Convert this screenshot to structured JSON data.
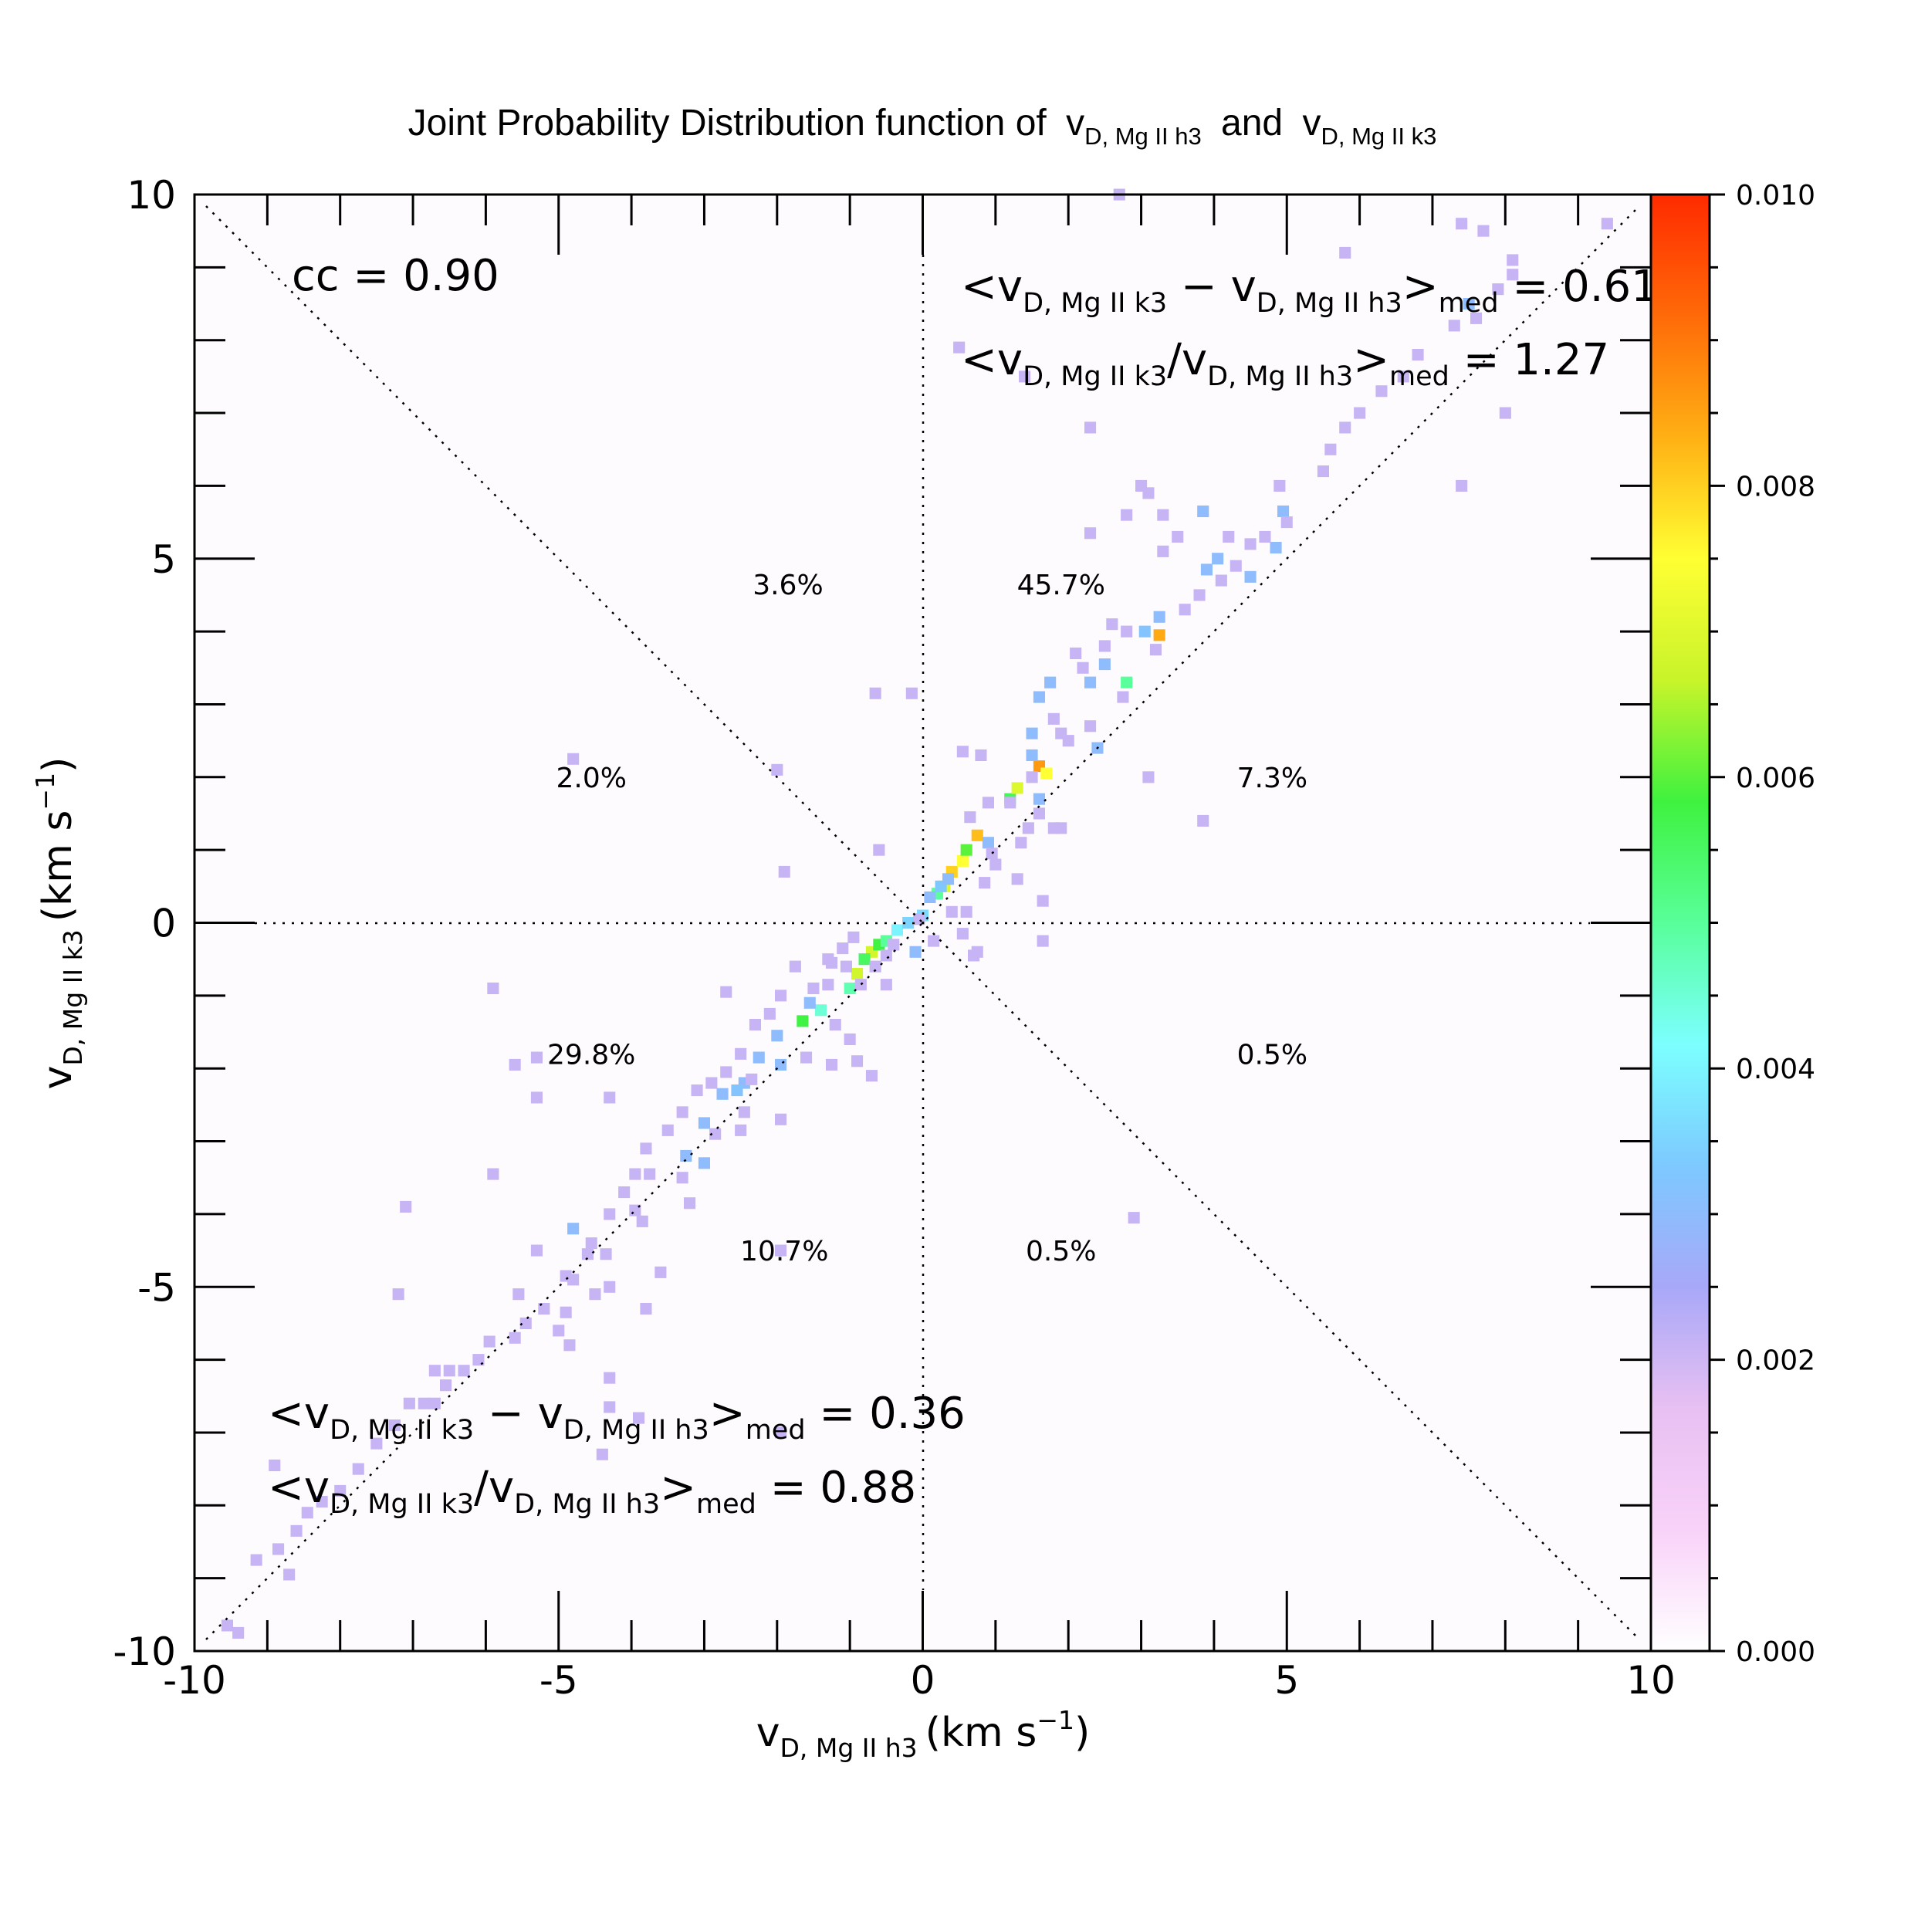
{
  "chart_data": {
    "type": "heatmap",
    "title": "Joint Probability Distribution function of",
    "title_var1": {
      "base": "v",
      "sub": "D, Mg II h3"
    },
    "title_and": "and",
    "title_var2": {
      "base": "v",
      "sub": "D, Mg II k3"
    },
    "xlabel": {
      "base": "v",
      "sub": "D, Mg II h3",
      "unit_pre": "(km s",
      "unit_sup": "−1",
      "unit_post": ")"
    },
    "ylabel": {
      "base": "v",
      "sub": "D, Mg II k3",
      "unit_pre": "(km s",
      "unit_sup": "−1",
      "unit_post": ")"
    },
    "xlim": [
      -10,
      10
    ],
    "ylim": [
      -10,
      10
    ],
    "xticks": [
      "-10",
      "-5",
      "0",
      "5",
      "10"
    ],
    "yticks": [
      "-10",
      "-5",
      "0",
      "5",
      "10"
    ],
    "colorbar": {
      "min": 0.0,
      "max": 0.01,
      "ticks": [
        "0.000",
        "0.002",
        "0.004",
        "0.006",
        "0.008",
        "0.010"
      ],
      "colors": [
        "#ffffff",
        "#f9d2f9",
        "#e8c0f2",
        "#a8a8f8",
        "#7dc9ff",
        "#7cffff",
        "#58ff9a",
        "#3ff23f",
        "#c8f42a",
        "#ffff33",
        "#ffb014",
        "#ff6a08",
        "#ff2a00"
      ]
    },
    "cc_label": "cc = 0.90",
    "upper_stats": {
      "line1": {
        "lhs": "<v",
        "s1": "D, Mg II k3",
        "minus": " − v",
        "s2": "D, Mg II h3",
        "close": ">",
        "med": "med",
        "eq": " = 0.61"
      },
      "line2": {
        "lhs": "<v",
        "s1": "D, Mg II k3",
        "slash": "/v",
        "s2": "D, Mg II h3",
        "close": ">",
        "med": "med",
        "eq": " = 1.27"
      }
    },
    "lower_stats": {
      "line1": {
        "lhs": "<v",
        "s1": "D, Mg II k3",
        "minus": " − v",
        "s2": "D, Mg II h3",
        "close": ">",
        "med": "med",
        "eq": " = 0.36"
      },
      "line2": {
        "lhs": "<v",
        "s1": "D, Mg II k3",
        "slash": "/v",
        "s2": "D, Mg II h3",
        "close": ">",
        "med": "med",
        "eq": " = 0.88"
      }
    },
    "octant_percentages": [
      {
        "label": "3.6%",
        "x": -1.85,
        "y": 4.65
      },
      {
        "label": "45.7%",
        "x": 1.9,
        "y": 4.65
      },
      {
        "label": "2.0%",
        "x": -4.55,
        "y": 2.0
      },
      {
        "label": "7.3%",
        "x": 4.8,
        "y": 2.0
      },
      {
        "label": "29.8%",
        "x": -4.55,
        "y": -1.8
      },
      {
        "label": "0.5%",
        "x": 4.8,
        "y": -1.8
      },
      {
        "label": "10.7%",
        "x": -1.9,
        "y": -4.5
      },
      {
        "label": "0.5%",
        "x": 1.9,
        "y": -4.5
      }
    ],
    "bin_size": 0.16,
    "cells": [
      [
        -0.7,
        -0.4,
        0.0068
      ],
      [
        -0.6,
        -0.3,
        0.0058
      ],
      [
        -0.9,
        -0.7,
        0.0068
      ],
      [
        -0.8,
        -0.5,
        0.0055
      ],
      [
        -0.5,
        -0.25,
        0.005
      ],
      [
        -0.35,
        -0.1,
        0.004
      ],
      [
        -0.2,
        0.0,
        0.0035
      ],
      [
        0.0,
        0.1,
        0.0036
      ],
      [
        0.2,
        0.4,
        0.005
      ],
      [
        0.3,
        0.5,
        0.007
      ],
      [
        0.4,
        0.7,
        0.008
      ],
      [
        0.1,
        0.35,
        0.003
      ],
      [
        0.25,
        0.5,
        0.0033
      ],
      [
        0.55,
        0.85,
        0.0075
      ],
      [
        0.75,
        1.2,
        0.0082
      ],
      [
        0.6,
        1.0,
        0.006
      ],
      [
        0.9,
        1.1,
        0.003
      ],
      [
        1.2,
        1.7,
        0.0056
      ],
      [
        1.3,
        1.85,
        0.007
      ],
      [
        1.6,
        2.15,
        0.0086
      ],
      [
        1.7,
        2.05,
        0.0075
      ],
      [
        1.5,
        2.3,
        0.003
      ],
      [
        1.5,
        2.6,
        0.003
      ],
      [
        1.6,
        3.1,
        0.003
      ],
      [
        1.75,
        3.3,
        0.003
      ],
      [
        2.3,
        3.3,
        0.003
      ],
      [
        2.5,
        3.55,
        0.003
      ],
      [
        2.8,
        3.3,
        0.005
      ],
      [
        3.05,
        4.0,
        0.0032
      ],
      [
        3.25,
        3.95,
        0.0084
      ],
      [
        3.25,
        4.2,
        0.003
      ],
      [
        3.9,
        4.85,
        0.003
      ],
      [
        4.05,
        5.0,
        0.003
      ],
      [
        4.5,
        4.75,
        0.003
      ],
      [
        4.85,
        5.15,
        0.003
      ],
      [
        4.95,
        5.65,
        0.003
      ],
      [
        3.85,
        5.65,
        0.003
      ],
      [
        1.6,
        1.7,
        0.003
      ],
      [
        -1.0,
        -0.9,
        0.0048
      ],
      [
        -1.4,
        -1.2,
        0.0045
      ],
      [
        -1.65,
        -1.35,
        0.0058
      ],
      [
        -1.55,
        -1.1,
        0.003
      ],
      [
        -2.0,
        -1.55,
        0.003
      ],
      [
        -2.25,
        -1.85,
        0.003
      ],
      [
        -2.45,
        -2.2,
        0.003
      ],
      [
        -2.55,
        -2.3,
        0.0032
      ],
      [
        -1.95,
        -1.95,
        0.003
      ],
      [
        -2.75,
        -2.35,
        0.003
      ],
      [
        -3.0,
        -2.75,
        0.003
      ],
      [
        -3.25,
        -3.2,
        0.003
      ],
      [
        -3.0,
        -3.3,
        0.003
      ],
      [
        -4.8,
        -4.2,
        0.003
      ],
      [
        -0.1,
        -0.4,
        0.003
      ],
      [
        0.35,
        0.6,
        0.003
      ],
      [
        2.4,
        2.4,
        0.003
      ],
      [
        7.5,
        8.5,
        0.003
      ],
      [
        -0.85,
        -0.85,
        0.0021
      ],
      [
        -1.05,
        -0.6,
        0.0021
      ],
      [
        -1.25,
        -0.55,
        0.0021
      ],
      [
        -1.3,
        -0.85,
        0.0021
      ],
      [
        -1.5,
        -0.9,
        0.0021
      ],
      [
        -0.65,
        -0.6,
        0.0021
      ],
      [
        -0.5,
        -0.85,
        0.0021
      ],
      [
        0.6,
        0.15,
        0.0021
      ],
      [
        0.85,
        0.55,
        0.0021
      ],
      [
        1.0,
        0.8,
        0.0021
      ],
      [
        1.35,
        1.1,
        0.0021
      ],
      [
        1.45,
        1.3,
        0.0021
      ],
      [
        1.6,
        1.5,
        0.0021
      ],
      [
        1.9,
        1.3,
        0.0021
      ],
      [
        0.65,
        1.45,
        0.0021
      ],
      [
        0.9,
        1.65,
        0.0021
      ],
      [
        0.55,
        2.35,
        0.0021
      ],
      [
        0.8,
        2.3,
        0.0021
      ],
      [
        1.5,
        2.0,
        0.0021
      ],
      [
        1.8,
        2.8,
        0.0021
      ],
      [
        1.9,
        2.6,
        0.0021
      ],
      [
        2.0,
        2.5,
        0.0021
      ],
      [
        2.3,
        2.7,
        0.0021
      ],
      [
        2.2,
        3.5,
        0.0021
      ],
      [
        2.1,
        3.7,
        0.0021
      ],
      [
        2.5,
        3.8,
        0.0021
      ],
      [
        2.6,
        4.1,
        0.0021
      ],
      [
        2.8,
        4.0,
        0.0021
      ],
      [
        2.75,
        3.1,
        0.0021
      ],
      [
        3.2,
        3.75,
        0.0021
      ],
      [
        3.6,
        4.3,
        0.0021
      ],
      [
        3.8,
        4.5,
        0.0021
      ],
      [
        4.1,
        4.7,
        0.0021
      ],
      [
        4.3,
        4.9,
        0.0021
      ],
      [
        4.5,
        5.2,
        0.0021
      ],
      [
        2.8,
        5.6,
        0.0021
      ],
      [
        3.3,
        5.6,
        0.0021
      ],
      [
        3.5,
        5.3,
        0.0021
      ],
      [
        4.2,
        5.3,
        0.0021
      ],
      [
        4.7,
        5.3,
        0.0021
      ],
      [
        4.9,
        6.0,
        0.0021
      ],
      [
        5.0,
        5.5,
        0.0021
      ],
      [
        5.5,
        6.2,
        0.0021
      ],
      [
        5.6,
        6.5,
        0.0021
      ],
      [
        5.8,
        6.8,
        0.0021
      ],
      [
        6.0,
        7.0,
        0.0021
      ],
      [
        6.3,
        7.3,
        0.0021
      ],
      [
        6.6,
        7.5,
        0.0021
      ],
      [
        6.8,
        7.8,
        0.0021
      ],
      [
        7.3,
        8.2,
        0.0021
      ],
      [
        7.6,
        8.3,
        0.0021
      ],
      [
        7.9,
        8.7,
        0.0021
      ],
      [
        8.1,
        8.9,
        0.0021
      ],
      [
        7.7,
        9.5,
        0.0021
      ],
      [
        9.4,
        9.6,
        0.0021
      ],
      [
        5.8,
        9.2,
        0.0021
      ],
      [
        7.4,
        9.6,
        0.0021
      ],
      [
        7.4,
        6.0,
        0.0021
      ],
      [
        8.0,
        7.0,
        0.0021
      ],
      [
        8.1,
        9.1,
        0.0021
      ],
      [
        2.7,
        10.0,
        0.0021
      ],
      [
        3.3,
        5.1,
        0.0021
      ],
      [
        3.0,
        6.0,
        0.0021
      ],
      [
        0.5,
        7.9,
        0.0021
      ],
      [
        2.3,
        6.8,
        0.0021
      ],
      [
        1.4,
        7.5,
        0.0021
      ],
      [
        -0.15,
        3.15,
        0.0021
      ],
      [
        -0.65,
        3.15,
        0.0021
      ],
      [
        -2.0,
        2.1,
        0.0021
      ],
      [
        -1.9,
        0.7,
        0.0021
      ],
      [
        -4.8,
        2.25,
        0.0021
      ],
      [
        3.1,
        2.0,
        0.0021
      ],
      [
        3.85,
        1.4,
        0.0021
      ],
      [
        1.8,
        1.3,
        0.0021
      ],
      [
        1.3,
        0.6,
        0.0021
      ],
      [
        1.65,
        0.3,
        0.0021
      ],
      [
        1.65,
        -0.25,
        0.0021
      ],
      [
        0.4,
        0.15,
        0.0021
      ],
      [
        0.7,
        -0.45,
        0.0021
      ],
      [
        0.95,
        0.95,
        0.0021
      ],
      [
        0.55,
        -0.15,
        0.0021
      ],
      [
        0.15,
        -0.25,
        0.0021
      ],
      [
        -0.05,
        0.05,
        0.0021
      ],
      [
        -0.4,
        -0.3,
        0.0021
      ],
      [
        -0.95,
        -0.2,
        0.0021
      ],
      [
        -1.3,
        -0.5,
        0.0021
      ],
      [
        -1.75,
        -0.6,
        0.0021
      ],
      [
        -1.95,
        -1.0,
        0.0021
      ],
      [
        -2.1,
        -1.25,
        0.0021
      ],
      [
        -2.3,
        -1.4,
        0.0021
      ],
      [
        -2.5,
        -1.8,
        0.0021
      ],
      [
        -2.7,
        -2.05,
        0.0021
      ],
      [
        -2.9,
        -2.2,
        0.0021
      ],
      [
        -3.1,
        -2.3,
        0.0021
      ],
      [
        -3.3,
        -2.6,
        0.0021
      ],
      [
        -3.5,
        -2.85,
        0.0021
      ],
      [
        -3.8,
        -3.1,
        0.0021
      ],
      [
        -3.75,
        -3.45,
        0.0021
      ],
      [
        -3.95,
        -3.45,
        0.0021
      ],
      [
        -4.1,
        -3.7,
        0.0021
      ],
      [
        -4.3,
        -4.0,
        0.0021
      ],
      [
        -4.55,
        -4.4,
        0.0021
      ],
      [
        -4.35,
        -4.55,
        0.0021
      ],
      [
        -4.9,
        -4.85,
        0.0021
      ],
      [
        -5.2,
        -5.3,
        0.0021
      ],
      [
        -5.45,
        -5.5,
        0.0021
      ],
      [
        -5.6,
        -5.7,
        0.0021
      ],
      [
        -5.95,
        -5.75,
        0.0021
      ],
      [
        -6.1,
        -6.0,
        0.0021
      ],
      [
        -6.3,
        -6.15,
        0.0021
      ],
      [
        -6.5,
        -6.15,
        0.0021
      ],
      [
        -6.7,
        -6.15,
        0.0021
      ],
      [
        -6.55,
        -6.35,
        0.0021
      ],
      [
        -6.7,
        -6.6,
        0.0021
      ],
      [
        -6.85,
        -6.6,
        0.0021
      ],
      [
        -7.05,
        -6.6,
        0.0021
      ],
      [
        -7.25,
        -6.9,
        0.0021
      ],
      [
        -7.5,
        -7.15,
        0.0021
      ],
      [
        -7.75,
        -7.5,
        0.0021
      ],
      [
        -8.0,
        -7.8,
        0.0021
      ],
      [
        -8.25,
        -7.95,
        0.0021
      ],
      [
        -8.45,
        -8.1,
        0.0021
      ],
      [
        -8.6,
        -8.35,
        0.0021
      ],
      [
        -8.85,
        -8.6,
        0.0021
      ],
      [
        -9.15,
        -8.75,
        0.0021
      ],
      [
        -8.9,
        -7.45,
        0.0021
      ],
      [
        -8.7,
        -8.95,
        0.0021
      ],
      [
        -9.55,
        -9.65,
        0.0021
      ],
      [
        -9.4,
        -9.75,
        0.0021
      ],
      [
        -5.9,
        -0.9,
        0.0021
      ],
      [
        -5.6,
        -1.95,
        0.0021
      ],
      [
        -5.3,
        -2.4,
        0.0021
      ],
      [
        -4.3,
        -2.4,
        0.0021
      ],
      [
        -5.9,
        -3.45,
        0.0021
      ],
      [
        -5.3,
        -4.5,
        0.0021
      ],
      [
        -4.6,
        -4.55,
        0.0021
      ],
      [
        -4.8,
        -4.9,
        0.0021
      ],
      [
        -4.3,
        -5.0,
        0.0021
      ],
      [
        -4.5,
        -5.1,
        0.0021
      ],
      [
        -4.9,
        -5.35,
        0.0021
      ],
      [
        -4.85,
        -5.8,
        0.0021
      ],
      [
        -5.55,
        -5.1,
        0.0021
      ],
      [
        -5.0,
        -5.6,
        0.0021
      ],
      [
        -4.3,
        -6.25,
        0.0021
      ],
      [
        -4.3,
        -6.65,
        0.0021
      ],
      [
        -3.9,
        -6.8,
        0.0021
      ],
      [
        -4.4,
        -7.3,
        0.0021
      ],
      [
        -3.8,
        -5.3,
        0.0021
      ],
      [
        -3.6,
        -4.8,
        0.0021
      ],
      [
        -3.85,
        -4.1,
        0.0021
      ],
      [
        -7.1,
        -3.9,
        0.0021
      ],
      [
        -7.2,
        -5.1,
        0.0021
      ],
      [
        -3.95,
        -3.95,
        0.0021
      ],
      [
        -3.3,
        -3.5,
        0.0021
      ],
      [
        -3.2,
        -3.85,
        0.0021
      ],
      [
        -2.85,
        -2.9,
        0.0021
      ],
      [
        -2.45,
        -2.6,
        0.0021
      ],
      [
        -2.5,
        -2.85,
        0.0021
      ],
      [
        -1.6,
        -1.85,
        0.0021
      ],
      [
        -1.95,
        -2.7,
        0.0021
      ],
      [
        -2.35,
        -2.15,
        0.0021
      ],
      [
        -1.2,
        -1.4,
        0.0021
      ],
      [
        -0.9,
        -1.9,
        0.0021
      ],
      [
        -1.25,
        -1.95,
        0.0021
      ],
      [
        -1.0,
        -1.6,
        0.0021
      ],
      [
        -0.7,
        -2.1,
        0.0021
      ],
      [
        -1.1,
        -0.35,
        0.0021
      ],
      [
        -0.5,
        -0.45,
        0.0021
      ],
      [
        -0.6,
        1.0,
        0.0021
      ],
      [
        -1.95,
        -4.5,
        0.0021
      ],
      [
        -1.95,
        -7.0,
        0.0021
      ],
      [
        -5.3,
        -1.85,
        0.0021
      ],
      [
        -2.7,
        -0.95,
        0.0021
      ],
      [
        0.75,
        -0.4,
        0.0021
      ],
      [
        1.2,
        1.65,
        0.0021
      ],
      [
        2.9,
        -4.05,
        0.0021
      ],
      [
        2.3,
        5.35,
        0.0021
      ],
      [
        3.1,
        5.9,
        0.0021
      ]
    ]
  }
}
